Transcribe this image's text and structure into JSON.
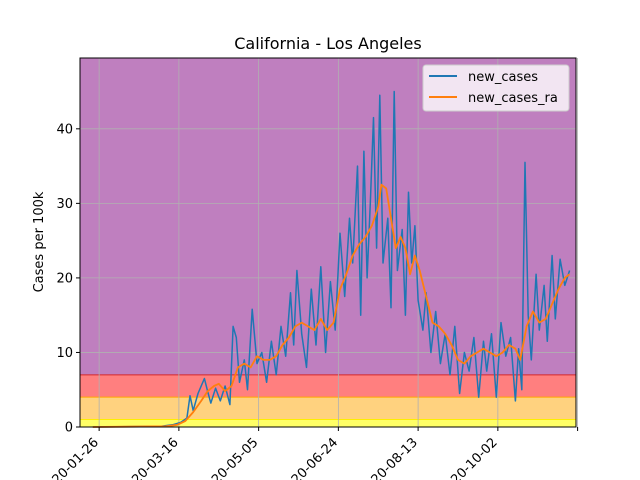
{
  "chart_data": {
    "type": "line",
    "title": "California - Los Angeles",
    "xlabel": "",
    "ylabel": "Cases per 100k",
    "x_start": "2020-01-22",
    "x_end": "2020-11-16",
    "xlim": [
      "2020-01-14",
      "2020-11-20"
    ],
    "ylim": [
      0,
      49.5
    ],
    "x_ticks": [
      "2020-01-26",
      "2020-03-16",
      "2020-05-05",
      "2020-06-24",
      "2020-08-13",
      "2020-10-02",
      "2020-11-21"
    ],
    "x_tick_labels": [
      "2020-01-26",
      "2020-03-16",
      "2020-05-05",
      "2020-06-24",
      "2020-08-13",
      "2020-10-02",
      ""
    ],
    "y_ticks": [
      0,
      10,
      20,
      30,
      40
    ],
    "grid": true,
    "legend_position": "top-right",
    "bands": [
      {
        "from": 0,
        "to": 1,
        "color": "#ffff66"
      },
      {
        "from": 1,
        "to": 4,
        "color": "#ffd27f"
      },
      {
        "from": 4,
        "to": 7,
        "color": "#ff7f7f"
      },
      {
        "from": 7,
        "to": 49.5,
        "color": "#bf7fbf"
      }
    ],
    "series": [
      {
        "name": "new_cases",
        "color": "#1f77b4",
        "points": [
          [
            "2020-01-22",
            0
          ],
          [
            "2020-03-05",
            0.1
          ],
          [
            "2020-03-12",
            0.3
          ],
          [
            "2020-03-17",
            0.6
          ],
          [
            "2020-03-21",
            1.2
          ],
          [
            "2020-03-23",
            4.2
          ],
          [
            "2020-03-25",
            2.2
          ],
          [
            "2020-03-28",
            4.5
          ],
          [
            "2020-04-01",
            6.5
          ],
          [
            "2020-04-03",
            4.8
          ],
          [
            "2020-04-05",
            3.2
          ],
          [
            "2020-04-08",
            5.2
          ],
          [
            "2020-04-11",
            3.5
          ],
          [
            "2020-04-14",
            5.5
          ],
          [
            "2020-04-17",
            3.0
          ],
          [
            "2020-04-19",
            13.5
          ],
          [
            "2020-04-21",
            12.0
          ],
          [
            "2020-04-23",
            6.0
          ],
          [
            "2020-04-26",
            9.0
          ],
          [
            "2020-04-28",
            5.0
          ],
          [
            "2020-05-01",
            15.8
          ],
          [
            "2020-05-04",
            8.5
          ],
          [
            "2020-05-07",
            10.0
          ],
          [
            "2020-05-10",
            6.0
          ],
          [
            "2020-05-13",
            11.5
          ],
          [
            "2020-05-16",
            7.0
          ],
          [
            "2020-05-19",
            13.5
          ],
          [
            "2020-05-22",
            9.5
          ],
          [
            "2020-05-25",
            18.0
          ],
          [
            "2020-05-27",
            11.0
          ],
          [
            "2020-05-29",
            21.0
          ],
          [
            "2020-06-01",
            12.5
          ],
          [
            "2020-06-04",
            8.0
          ],
          [
            "2020-06-07",
            18.5
          ],
          [
            "2020-06-10",
            11.0
          ],
          [
            "2020-06-13",
            21.5
          ],
          [
            "2020-06-16",
            10.0
          ],
          [
            "2020-06-19",
            19.5
          ],
          [
            "2020-06-22",
            13.0
          ],
          [
            "2020-06-25",
            26.0
          ],
          [
            "2020-06-28",
            17.5
          ],
          [
            "2020-07-01",
            28.0
          ],
          [
            "2020-07-03",
            22.0
          ],
          [
            "2020-07-06",
            35.0
          ],
          [
            "2020-07-08",
            15.0
          ],
          [
            "2020-07-10",
            37.0
          ],
          [
            "2020-07-12",
            20.0
          ],
          [
            "2020-07-14",
            30.0
          ],
          [
            "2020-07-16",
            41.5
          ],
          [
            "2020-07-18",
            24.0
          ],
          [
            "2020-07-20",
            44.5
          ],
          [
            "2020-07-22",
            22.0
          ],
          [
            "2020-07-25",
            28.0
          ],
          [
            "2020-07-27",
            16.0
          ],
          [
            "2020-07-29",
            45.0
          ],
          [
            "2020-07-31",
            21.0
          ],
          [
            "2020-08-03",
            26.5
          ],
          [
            "2020-08-05",
            15.0
          ],
          [
            "2020-08-07",
            31.5
          ],
          [
            "2020-08-09",
            22.0
          ],
          [
            "2020-08-11",
            27.0
          ],
          [
            "2020-08-13",
            17.0
          ],
          [
            "2020-08-16",
            13.0
          ],
          [
            "2020-08-18",
            18.0
          ],
          [
            "2020-08-21",
            10.0
          ],
          [
            "2020-08-24",
            15.5
          ],
          [
            "2020-08-27",
            8.5
          ],
          [
            "2020-08-30",
            12.5
          ],
          [
            "2020-09-02",
            7.0
          ],
          [
            "2020-09-05",
            13.5
          ],
          [
            "2020-09-08",
            4.5
          ],
          [
            "2020-09-11",
            10.0
          ],
          [
            "2020-09-14",
            7.5
          ],
          [
            "2020-09-17",
            12.0
          ],
          [
            "2020-09-20",
            4.0
          ],
          [
            "2020-09-23",
            11.5
          ],
          [
            "2020-09-25",
            7.5
          ],
          [
            "2020-09-28",
            12.5
          ],
          [
            "2020-10-01",
            4.0
          ],
          [
            "2020-10-04",
            14.0
          ],
          [
            "2020-10-07",
            9.5
          ],
          [
            "2020-10-10",
            12.0
          ],
          [
            "2020-10-13",
            3.5
          ],
          [
            "2020-10-15",
            10.5
          ],
          [
            "2020-10-17",
            5.0
          ],
          [
            "2020-10-19",
            35.5
          ],
          [
            "2020-10-21",
            15.0
          ],
          [
            "2020-10-23",
            9.0
          ],
          [
            "2020-10-26",
            20.5
          ],
          [
            "2020-10-28",
            13.0
          ],
          [
            "2020-10-31",
            19.0
          ],
          [
            "2020-11-02",
            11.5
          ],
          [
            "2020-11-05",
            23.0
          ],
          [
            "2020-11-07",
            14.5
          ],
          [
            "2020-11-10",
            22.5
          ],
          [
            "2020-11-13",
            19.0
          ],
          [
            "2020-11-16",
            21.0
          ]
        ]
      },
      {
        "name": "new_cases_ra",
        "color": "#ff7f0e",
        "points": [
          [
            "2020-01-22",
            0
          ],
          [
            "2020-03-08",
            0.1
          ],
          [
            "2020-03-15",
            0.3
          ],
          [
            "2020-03-20",
            0.8
          ],
          [
            "2020-03-25",
            2.0
          ],
          [
            "2020-03-30",
            3.5
          ],
          [
            "2020-04-03",
            4.8
          ],
          [
            "2020-04-07",
            5.5
          ],
          [
            "2020-04-10",
            5.8
          ],
          [
            "2020-04-14",
            4.8
          ],
          [
            "2020-04-18",
            5.5
          ],
          [
            "2020-04-22",
            8.0
          ],
          [
            "2020-04-26",
            8.5
          ],
          [
            "2020-04-30",
            8.0
          ],
          [
            "2020-05-04",
            9.5
          ],
          [
            "2020-05-08",
            9.0
          ],
          [
            "2020-05-12",
            9.0
          ],
          [
            "2020-05-16",
            9.5
          ],
          [
            "2020-05-20",
            11.0
          ],
          [
            "2020-05-24",
            12.0
          ],
          [
            "2020-05-28",
            13.5
          ],
          [
            "2020-06-01",
            14.0
          ],
          [
            "2020-06-05",
            13.5
          ],
          [
            "2020-06-09",
            13.0
          ],
          [
            "2020-06-13",
            14.5
          ],
          [
            "2020-06-17",
            13.0
          ],
          [
            "2020-06-21",
            14.0
          ],
          [
            "2020-06-25",
            18.5
          ],
          [
            "2020-06-29",
            20.5
          ],
          [
            "2020-07-03",
            23.0
          ],
          [
            "2020-07-07",
            24.5
          ],
          [
            "2020-07-11",
            25.5
          ],
          [
            "2020-07-15",
            27.0
          ],
          [
            "2020-07-19",
            29.5
          ],
          [
            "2020-07-21",
            32.5
          ],
          [
            "2020-07-24",
            32.0
          ],
          [
            "2020-07-27",
            28.0
          ],
          [
            "2020-07-30",
            24.0
          ],
          [
            "2020-08-02",
            25.5
          ],
          [
            "2020-08-05",
            24.0
          ],
          [
            "2020-08-08",
            20.5
          ],
          [
            "2020-08-11",
            23.0
          ],
          [
            "2020-08-14",
            21.0
          ],
          [
            "2020-08-18",
            17.5
          ],
          [
            "2020-08-22",
            14.0
          ],
          [
            "2020-08-26",
            13.5
          ],
          [
            "2020-08-30",
            12.5
          ],
          [
            "2020-09-03",
            11.0
          ],
          [
            "2020-09-07",
            9.0
          ],
          [
            "2020-09-11",
            8.5
          ],
          [
            "2020-09-15",
            9.5
          ],
          [
            "2020-09-19",
            10.0
          ],
          [
            "2020-09-23",
            10.5
          ],
          [
            "2020-09-27",
            10.0
          ],
          [
            "2020-10-01",
            9.5
          ],
          [
            "2020-10-05",
            10.0
          ],
          [
            "2020-10-09",
            11.0
          ],
          [
            "2020-10-13",
            10.5
          ],
          [
            "2020-10-16",
            9.0
          ],
          [
            "2020-10-20",
            13.5
          ],
          [
            "2020-10-24",
            15.5
          ],
          [
            "2020-10-28",
            14.0
          ],
          [
            "2020-11-01",
            14.5
          ],
          [
            "2020-11-05",
            16.5
          ],
          [
            "2020-11-09",
            18.5
          ],
          [
            "2020-11-13",
            20.0
          ],
          [
            "2020-11-16",
            20.5
          ]
        ]
      }
    ]
  }
}
